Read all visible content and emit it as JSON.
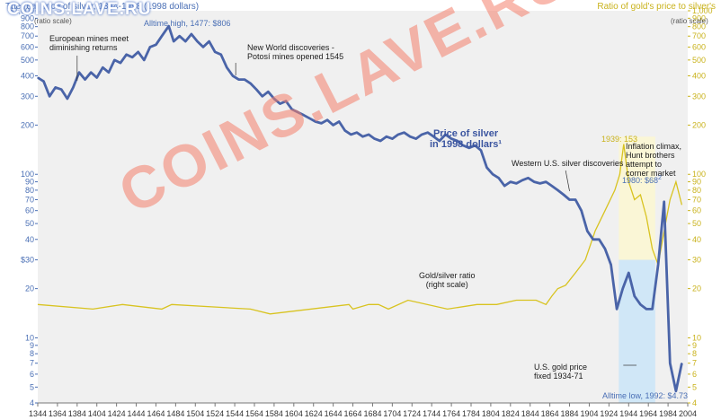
{
  "header": {
    "left_title": "The real price of silver, 1344-1998 (1998 dollars)",
    "left_unit": "$1,000",
    "right_title": "Ratio of gold's price to silver's",
    "right_scale_note": "(ratio scale)",
    "left_scale_note": "(ratio scale)",
    "watermark_small": "COINS.LAVE.RU",
    "watermark_big": "COINS.LAVE.RU"
  },
  "annotations": {
    "alltime_high": "Alltime high, 1477: $806",
    "european_mines": "European mines meet\ndiminishing returns",
    "new_world": "New World discoveries -\nPotosí mines opened 1545",
    "price_series": "Price of silver\nin 1998 dollars¹",
    "western_us": "Western U.S. silver discoveries",
    "ratio_label": "Gold/silver ratio\n(right scale)",
    "ratio_peak": "1939: 153",
    "inflation": "Inflation climax,\nHunt brothers\nattempt to\ncorner market",
    "price_1980": "1980: $68",
    "price_1980_sup": "2",
    "gold_fixed": "U.S. gold price\nfixed 1934-71",
    "alltime_low": "Alltime low, 1992: $4.73"
  },
  "colors": {
    "price_line": "#4a64a8",
    "ratio_line": "#d8c320",
    "left_axis": "#4a6fb5",
    "right_axis": "#c9b21b",
    "plot_bg": "#f0f0f0",
    "gold_fixed_band": "#cce6f7",
    "ratio_band": "#fbf6d3"
  },
  "chart_data": {
    "type": "line",
    "title": "The real price of silver, 1344-1998 (1998 dollars)",
    "xlabel": "",
    "ylabel": "$ (1998 dollars, ratio scale)",
    "y2label": "Ratio of gold's price to silver's (ratio scale)",
    "xlim": [
      1344,
      2004
    ],
    "ylim": [
      4,
      1000
    ],
    "y2lim": [
      4,
      1000
    ],
    "yscale": "log",
    "x_ticks": [
      1344,
      1364,
      1384,
      1404,
      1424,
      1444,
      1464,
      1484,
      1504,
      1524,
      1544,
      1564,
      1584,
      1604,
      1624,
      1644,
      1664,
      1684,
      1704,
      1724,
      1744,
      1764,
      1784,
      1804,
      1824,
      1844,
      1864,
      1884,
      1904,
      1924,
      1944,
      1964,
      1984,
      2004
    ],
    "y_ticks_left": [
      {
        "v": 1000,
        "label": "$1,000"
      },
      {
        "v": 900,
        "label": "900"
      },
      {
        "v": 800,
        "label": "800"
      },
      {
        "v": 700,
        "label": "700"
      },
      {
        "v": 600,
        "label": "600"
      },
      {
        "v": 500,
        "label": "500"
      },
      {
        "v": 400,
        "label": "400"
      },
      {
        "v": 300,
        "label": "300"
      },
      {
        "v": 200,
        "label": "200"
      },
      {
        "v": 100,
        "label": "100"
      },
      {
        "v": 90,
        "label": "90"
      },
      {
        "v": 80,
        "label": "80"
      },
      {
        "v": 70,
        "label": "70"
      },
      {
        "v": 60,
        "label": "60"
      },
      {
        "v": 50,
        "label": "50"
      },
      {
        "v": 40,
        "label": "40"
      },
      {
        "v": 30,
        "label": "$30"
      },
      {
        "v": 20,
        "label": "20"
      },
      {
        "v": 10,
        "label": "10"
      },
      {
        "v": 9,
        "label": "9"
      },
      {
        "v": 8,
        "label": "8"
      },
      {
        "v": 7,
        "label": "7"
      },
      {
        "v": 6,
        "label": "6"
      },
      {
        "v": 5,
        "label": "5"
      },
      {
        "v": 4,
        "label": "4"
      }
    ],
    "y_ticks_right": [
      {
        "v": 1000,
        "label": "1,000"
      },
      {
        "v": 900,
        "label": "900"
      },
      {
        "v": 800,
        "label": "800"
      },
      {
        "v": 700,
        "label": "700"
      },
      {
        "v": 600,
        "label": "600"
      },
      {
        "v": 500,
        "label": "500"
      },
      {
        "v": 400,
        "label": "400"
      },
      {
        "v": 300,
        "label": "300"
      },
      {
        "v": 200,
        "label": "200"
      },
      {
        "v": 100,
        "label": "100"
      },
      {
        "v": 90,
        "label": "90"
      },
      {
        "v": 80,
        "label": "80"
      },
      {
        "v": 70,
        "label": "70"
      },
      {
        "v": 60,
        "label": "60"
      },
      {
        "v": 50,
        "label": "50"
      },
      {
        "v": 40,
        "label": "40"
      },
      {
        "v": 30,
        "label": "30"
      },
      {
        "v": 20,
        "label": "20"
      },
      {
        "v": 10,
        "label": "10"
      },
      {
        "v": 9,
        "label": "9"
      },
      {
        "v": 8,
        "label": "8"
      },
      {
        "v": 7,
        "label": "7"
      },
      {
        "v": 6,
        "label": "6"
      },
      {
        "v": 5,
        "label": "5"
      },
      {
        "v": 4,
        "label": "4"
      }
    ],
    "series": [
      {
        "name": "Price of silver in 1998 dollars",
        "axis": "left",
        "x": [
          1344,
          1350,
          1356,
          1362,
          1368,
          1374,
          1380,
          1386,
          1392,
          1398,
          1404,
          1410,
          1416,
          1422,
          1428,
          1434,
          1440,
          1446,
          1452,
          1458,
          1464,
          1470,
          1477,
          1482,
          1488,
          1494,
          1500,
          1506,
          1512,
          1518,
          1524,
          1530,
          1536,
          1542,
          1548,
          1554,
          1560,
          1566,
          1572,
          1578,
          1584,
          1590,
          1596,
          1602,
          1608,
          1614,
          1620,
          1626,
          1632,
          1638,
          1644,
          1650,
          1656,
          1662,
          1668,
          1674,
          1680,
          1686,
          1692,
          1698,
          1704,
          1710,
          1716,
          1722,
          1728,
          1734,
          1740,
          1746,
          1752,
          1758,
          1764,
          1770,
          1776,
          1782,
          1788,
          1794,
          1800,
          1806,
          1812,
          1818,
          1824,
          1830,
          1836,
          1842,
          1848,
          1854,
          1860,
          1866,
          1872,
          1878,
          1884,
          1890,
          1896,
          1902,
          1908,
          1914,
          1920,
          1926,
          1932,
          1938,
          1944,
          1950,
          1956,
          1962,
          1968,
          1974,
          1980,
          1986,
          1992,
          1998
        ],
        "values": [
          390,
          370,
          300,
          340,
          330,
          290,
          340,
          420,
          380,
          420,
          390,
          450,
          420,
          500,
          480,
          540,
          520,
          560,
          500,
          600,
          620,
          700,
          806,
          650,
          700,
          650,
          720,
          650,
          600,
          650,
          560,
          540,
          450,
          400,
          380,
          380,
          360,
          330,
          300,
          320,
          290,
          270,
          280,
          250,
          240,
          230,
          220,
          210,
          205,
          215,
          200,
          210,
          185,
          175,
          180,
          170,
          175,
          165,
          160,
          170,
          165,
          175,
          180,
          170,
          165,
          175,
          180,
          170,
          160,
          175,
          165,
          160,
          150,
          145,
          150,
          140,
          110,
          100,
          95,
          85,
          90,
          88,
          92,
          95,
          90,
          88,
          90,
          85,
          80,
          75,
          70,
          70,
          60,
          45,
          40,
          40,
          35,
          28,
          15,
          20,
          25,
          18,
          16,
          15,
          15,
          28,
          68,
          7,
          4.73,
          7
        ]
      },
      {
        "name": "Gold/silver ratio",
        "axis": "right",
        "x": [
          1344,
          1400,
          1430,
          1470,
          1480,
          1560,
          1580,
          1660,
          1664,
          1680,
          1690,
          1700,
          1720,
          1760,
          1790,
          1800,
          1810,
          1830,
          1850,
          1860,
          1866,
          1872,
          1880,
          1890,
          1900,
          1910,
          1920,
          1930,
          1935,
          1939,
          1944,
          1950,
          1956,
          1962,
          1968,
          1974,
          1980,
          1986,
          1992,
          1998
        ],
        "values": [
          16,
          15,
          16,
          15,
          16,
          15,
          14,
          16,
          15,
          16,
          16,
          15,
          17,
          15,
          16,
          16,
          16,
          17,
          17,
          16,
          18,
          20,
          21,
          25,
          30,
          45,
          60,
          80,
          100,
          153,
          90,
          70,
          75,
          55,
          35,
          28,
          45,
          70,
          90,
          65
        ]
      }
    ],
    "annotations_data": [
      {
        "label": "Alltime high, 1477: $806",
        "x": 1477,
        "y": 806
      },
      {
        "label": "1939: 153",
        "x": 1939,
        "y": 153
      },
      {
        "label": "1980: $68",
        "x": 1980,
        "y": 68
      },
      {
        "label": "Alltime low, 1992: $4.73",
        "x": 1992,
        "y": 4.73
      }
    ],
    "shaded_regions": [
      {
        "label": "U.S. gold price fixed 1934-71",
        "x0": 1934,
        "x1": 1971
      }
    ],
    "grid": false,
    "legend": "none"
  }
}
